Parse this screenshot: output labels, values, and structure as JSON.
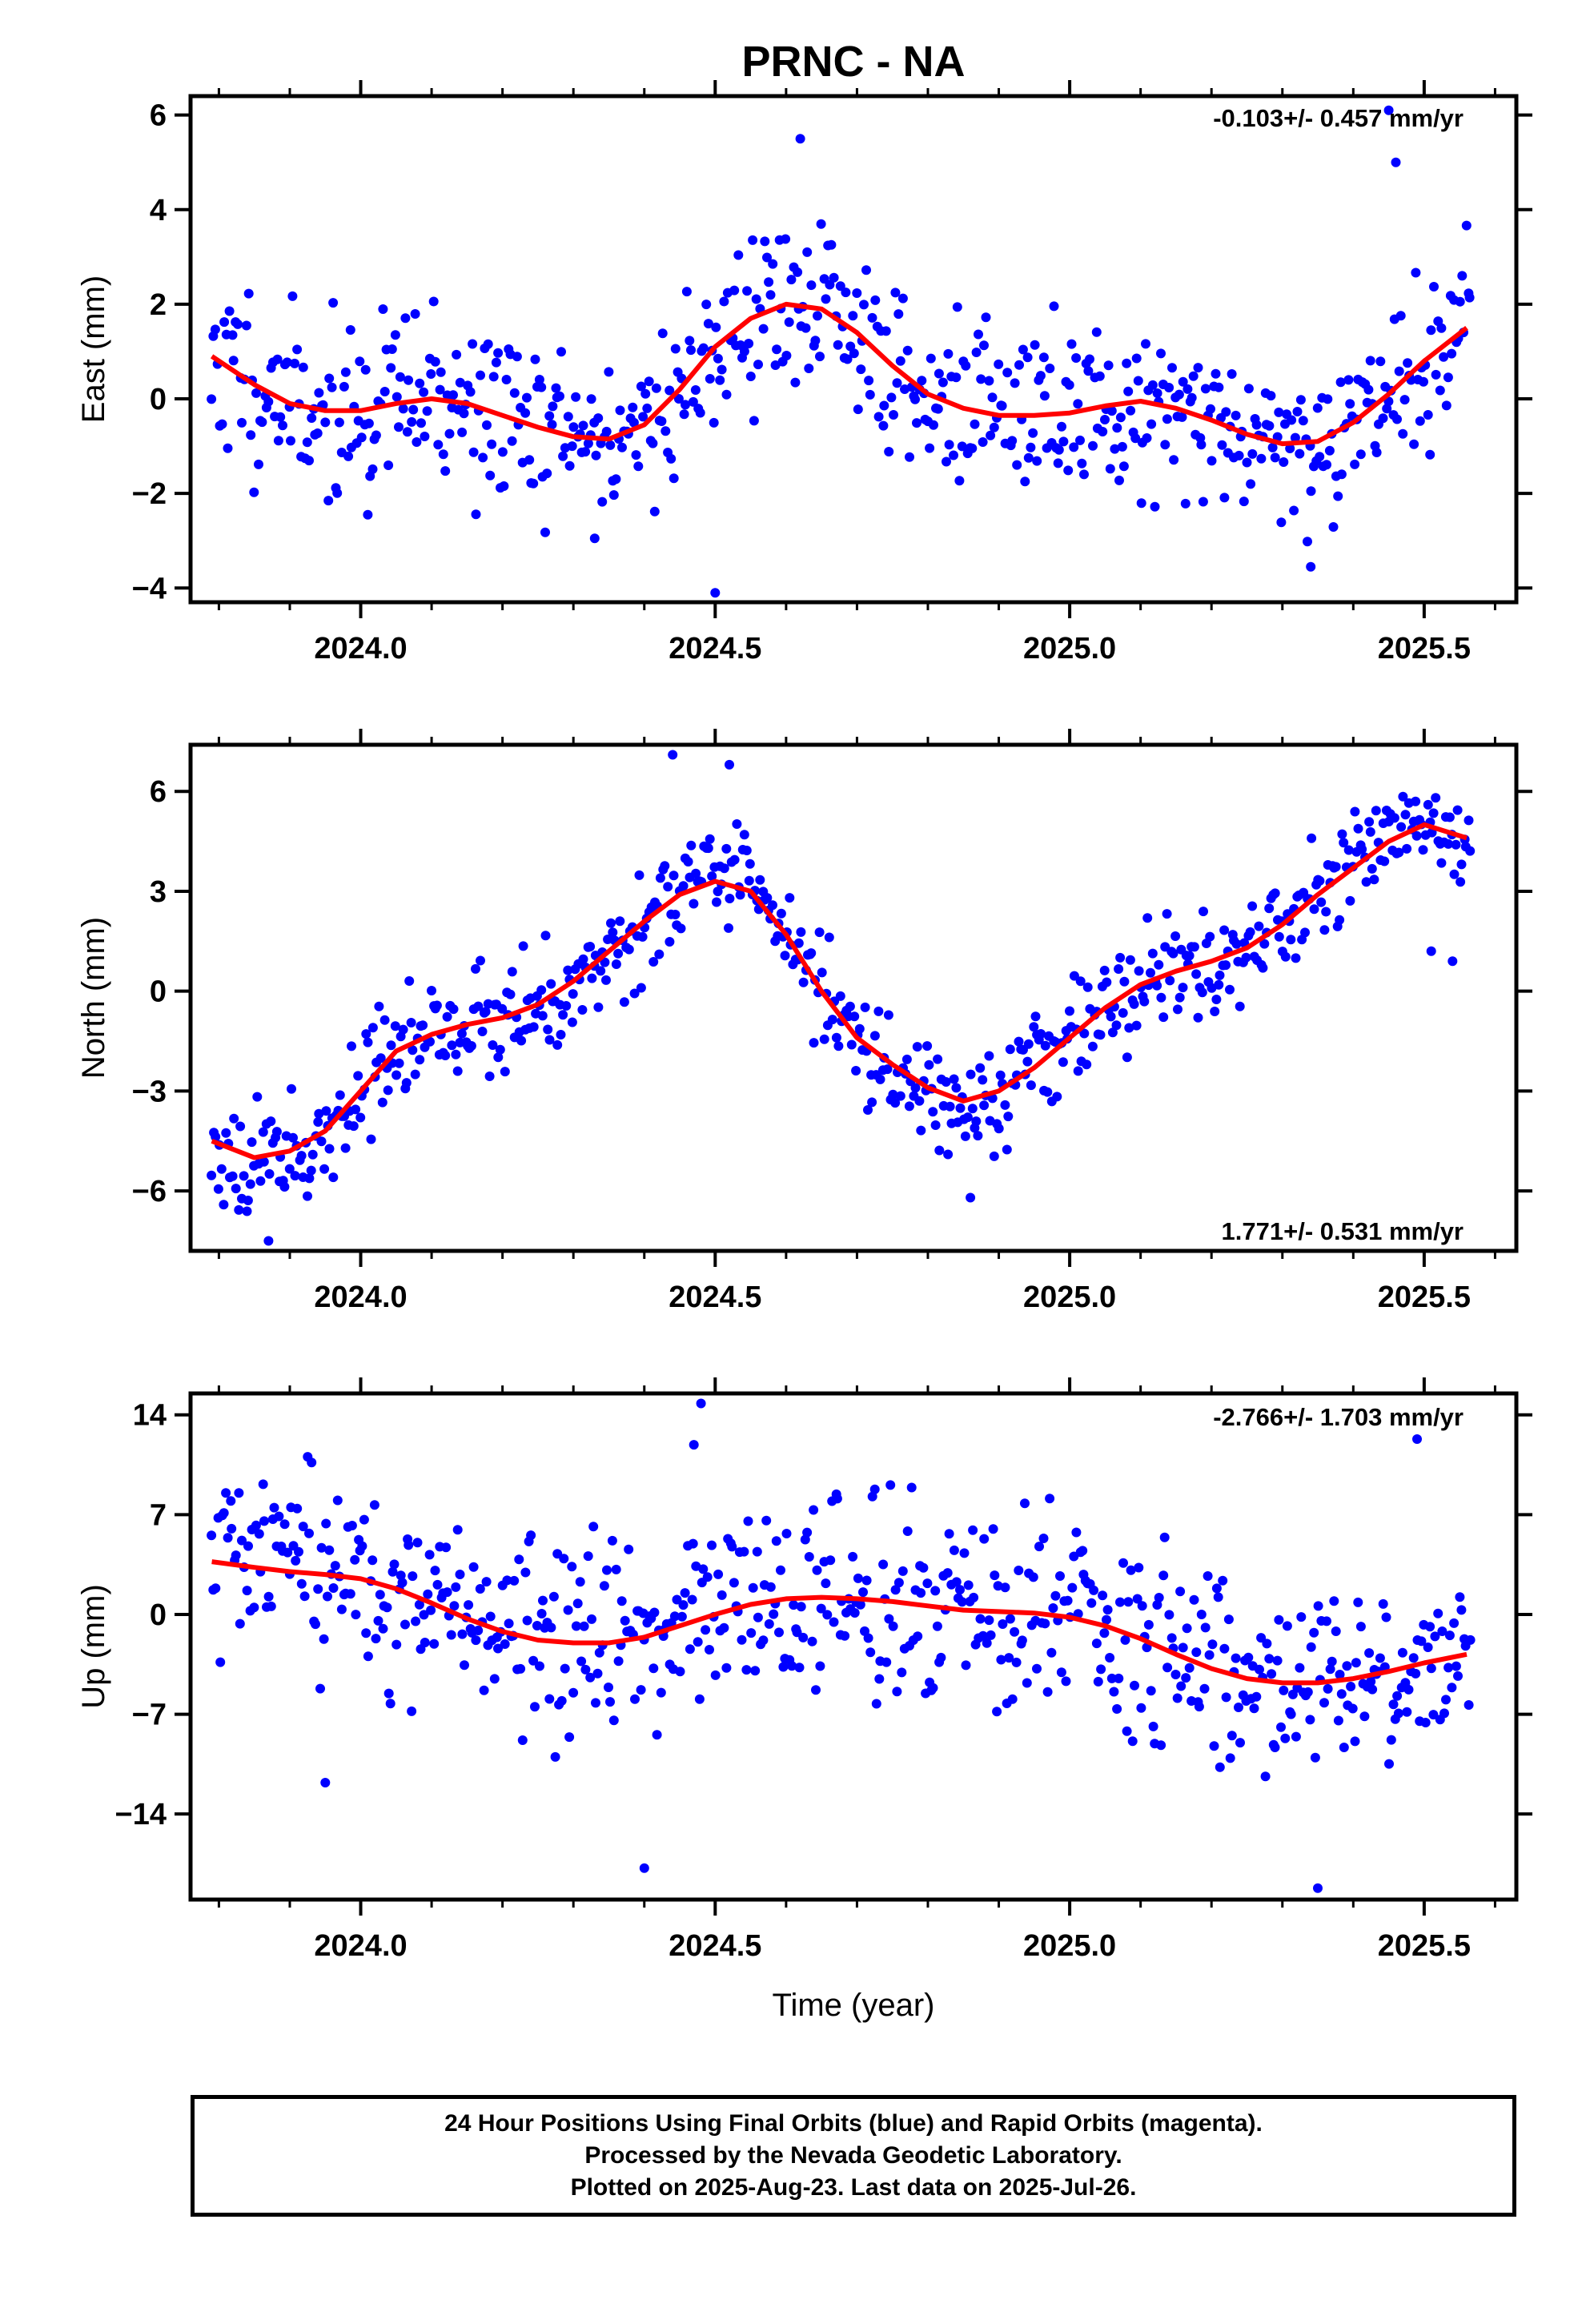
{
  "title": "PRNC - NA",
  "colors": {
    "points": "#0000ff",
    "fit": "#ff0000",
    "frame": "#000000"
  },
  "footer": {
    "line1": "24 Hour Positions Using Final Orbits (blue) and Rapid Orbits (magenta).",
    "line2": "Processed by the Nevada Geodetic Laboratory.",
    "line3": "Plotted on 2025-Aug-23. Last data on 2025-Jul-26."
  },
  "chart_data": [
    {
      "type": "scatter",
      "ylabel": "East (mm)",
      "xlabel": "",
      "rate_label": "-0.103+/- 0.457 mm/yr",
      "xlim": [
        2023.76,
        2025.63
      ],
      "ylim": [
        -4.3,
        6.4
      ],
      "x_ticks": [
        2024.0,
        2024.5,
        2025.0,
        2025.5
      ],
      "x_tick_labels": [
        "2024.0",
        "2024.5",
        "2025.0",
        "2025.5"
      ],
      "y_ticks": [
        -4,
        -2,
        0,
        2,
        4,
        6
      ],
      "y_tick_labels": [
        "−4",
        "−2",
        "0",
        "2",
        "4",
        "6"
      ],
      "grid": false,
      "trend": {
        "x": [
          2023.79,
          2023.85,
          2023.9,
          2023.95,
          2024.0,
          2024.05,
          2024.1,
          2024.15,
          2024.2,
          2024.25,
          2024.3,
          2024.35,
          2024.4,
          2024.45,
          2024.5,
          2024.55,
          2024.6,
          2024.65,
          2024.7,
          2024.75,
          2024.8,
          2024.85,
          2024.9,
          2024.95,
          2025.0,
          2025.05,
          2025.1,
          2025.15,
          2025.2,
          2025.25,
          2025.3,
          2025.35,
          2025.4,
          2025.45,
          2025.5,
          2025.56
        ],
        "y": [
          0.9,
          0.3,
          -0.1,
          -0.25,
          -0.25,
          -0.1,
          0.0,
          -0.1,
          -0.35,
          -0.6,
          -0.8,
          -0.85,
          -0.55,
          0.2,
          1.1,
          1.7,
          2.0,
          1.9,
          1.4,
          0.7,
          0.1,
          -0.2,
          -0.35,
          -0.35,
          -0.3,
          -0.15,
          -0.05,
          -0.2,
          -0.45,
          -0.75,
          -0.95,
          -0.9,
          -0.5,
          0.1,
          0.8,
          1.5
        ]
      },
      "stats": {
        "n": 620,
        "x0": 2023.79,
        "x1": 2025.565,
        "seed": 11,
        "scatter": 0.95,
        "outliers": [
          [
            2024.5,
            -4.1
          ],
          [
            2024.62,
            5.5
          ],
          [
            2025.45,
            6.1
          ],
          [
            2025.46,
            5.0
          ],
          [
            2025.34,
            -3.55
          ],
          [
            2024.01,
            -2.45
          ],
          [
            2024.33,
            -2.95
          ]
        ]
      }
    },
    {
      "type": "scatter",
      "ylabel": "North (mm)",
      "xlabel": "",
      "rate_label": "1.771+/- 0.531 mm/yr",
      "xlim": [
        2023.76,
        2025.63
      ],
      "ylim": [
        -7.8,
        7.4
      ],
      "x_ticks": [
        2024.0,
        2024.5,
        2025.0,
        2025.5
      ],
      "x_tick_labels": [
        "2024.0",
        "2024.5",
        "2025.0",
        "2025.5"
      ],
      "y_ticks": [
        -6,
        -3,
        0,
        3,
        6
      ],
      "y_tick_labels": [
        "−6",
        "−3",
        "0",
        "3",
        "6"
      ],
      "grid": false,
      "trend": {
        "x": [
          2023.79,
          2023.85,
          2023.9,
          2023.95,
          2024.0,
          2024.05,
          2024.1,
          2024.15,
          2024.2,
          2024.25,
          2024.3,
          2024.35,
          2024.4,
          2024.45,
          2024.5,
          2024.55,
          2024.6,
          2024.65,
          2024.7,
          2024.75,
          2024.8,
          2024.85,
          2024.9,
          2024.95,
          2025.0,
          2025.05,
          2025.1,
          2025.15,
          2025.2,
          2025.25,
          2025.3,
          2025.35,
          2025.4,
          2025.45,
          2025.5,
          2025.56
        ],
        "y": [
          -4.5,
          -5.0,
          -4.8,
          -4.2,
          -3.0,
          -1.8,
          -1.3,
          -1.0,
          -0.8,
          -0.4,
          0.3,
          1.2,
          2.1,
          2.9,
          3.3,
          3.0,
          1.7,
          0.0,
          -1.4,
          -2.2,
          -2.9,
          -3.3,
          -3.0,
          -2.3,
          -1.4,
          -0.5,
          0.2,
          0.6,
          0.9,
          1.3,
          2.0,
          2.9,
          3.7,
          4.5,
          5.0,
          4.6
        ]
      },
      "stats": {
        "n": 620,
        "x0": 2023.79,
        "x1": 2025.565,
        "seed": 23,
        "scatter": 0.8,
        "outliers": [
          [
            2024.44,
            7.1
          ],
          [
            2024.52,
            6.8
          ],
          [
            2024.86,
            -6.2
          ],
          [
            2023.87,
            -7.5
          ],
          [
            2025.54,
            0.9
          ],
          [
            2025.51,
            1.2
          ]
        ]
      }
    },
    {
      "type": "scatter",
      "ylabel": "Up (mm)",
      "xlabel": "Time (year)",
      "rate_label": "-2.766+/- 1.703 mm/yr",
      "xlim": [
        2023.76,
        2025.63
      ],
      "ylim": [
        -20,
        15.5
      ],
      "x_ticks": [
        2024.0,
        2024.5,
        2025.0,
        2025.5
      ],
      "x_tick_labels": [
        "2024.0",
        "2024.5",
        "2025.0",
        "2025.5"
      ],
      "y_ticks": [
        -14,
        -7,
        0,
        7,
        14
      ],
      "y_tick_labels": [
        "−14",
        "−7",
        "0",
        "7",
        "14"
      ],
      "grid": false,
      "trend": {
        "x": [
          2023.79,
          2023.85,
          2023.9,
          2023.95,
          2024.0,
          2024.05,
          2024.1,
          2024.15,
          2024.2,
          2024.25,
          2024.3,
          2024.35,
          2024.4,
          2024.45,
          2024.5,
          2024.55,
          2024.6,
          2024.65,
          2024.7,
          2024.75,
          2024.8,
          2024.85,
          2024.9,
          2024.95,
          2025.0,
          2025.05,
          2025.1,
          2025.15,
          2025.2,
          2025.25,
          2025.3,
          2025.35,
          2025.4,
          2025.45,
          2025.5,
          2025.56
        ],
        "y": [
          3.7,
          3.3,
          3.0,
          2.8,
          2.5,
          1.8,
          0.8,
          -0.3,
          -1.2,
          -1.8,
          -2.0,
          -2.0,
          -1.6,
          -0.8,
          0.0,
          0.7,
          1.1,
          1.2,
          1.1,
          0.9,
          0.6,
          0.3,
          0.2,
          0.1,
          -0.2,
          -0.8,
          -1.7,
          -2.8,
          -3.8,
          -4.5,
          -4.8,
          -4.8,
          -4.5,
          -4.0,
          -3.4,
          -2.8
        ]
      },
      "stats": {
        "n": 620,
        "x0": 2023.79,
        "x1": 2025.565,
        "seed": 37,
        "scatter": 3.4,
        "outliers": [
          [
            2024.4,
            -17.8
          ],
          [
            2025.35,
            -19.2
          ],
          [
            2023.95,
            -11.8
          ],
          [
            2024.48,
            14.8
          ],
          [
            2025.49,
            12.3
          ],
          [
            2024.47,
            11.9
          ]
        ]
      }
    }
  ]
}
